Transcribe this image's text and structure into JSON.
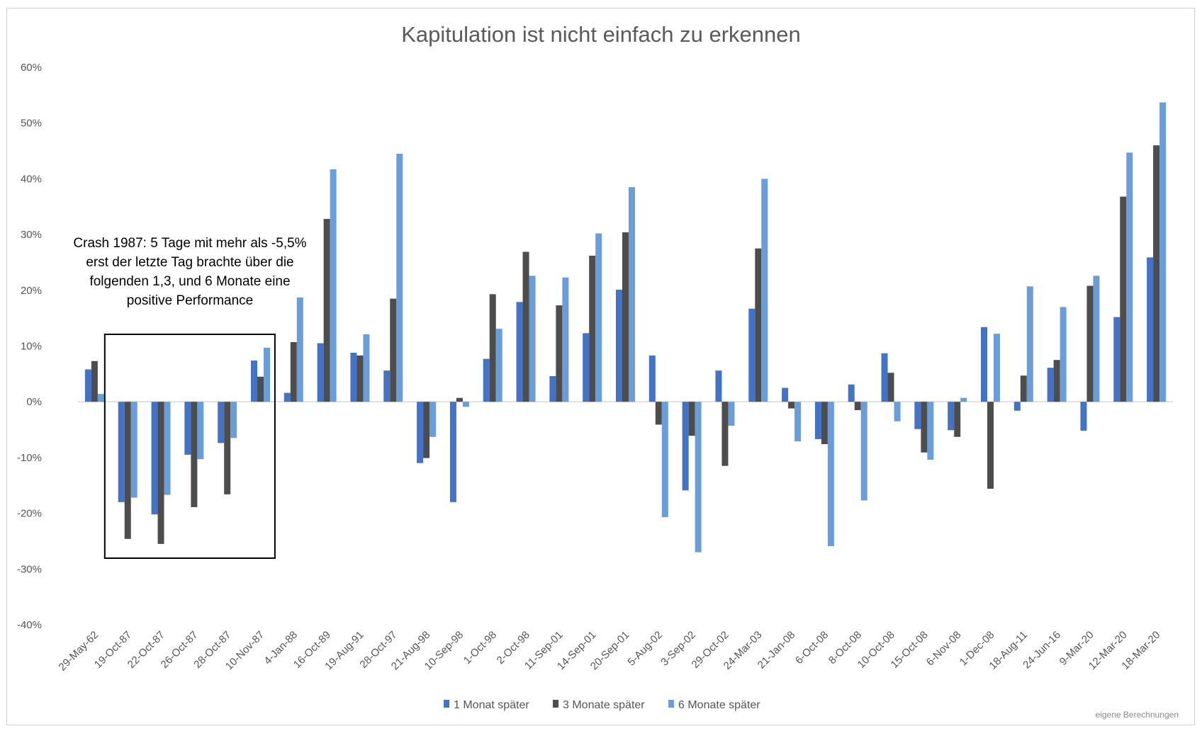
{
  "chart_data": {
    "type": "bar",
    "title": "Kapitulation ist nicht einfach zu erkennen",
    "xlabel": "",
    "ylabel": "",
    "ylim": [
      -0.4,
      0.6
    ],
    "y_ticks": [
      "60%",
      "50%",
      "40%",
      "30%",
      "20%",
      "10%",
      "0%",
      "-10%",
      "-20%",
      "-30%",
      "-40%"
    ],
    "grid": false,
    "legend_position": "bottom",
    "categories": [
      "29-May-62",
      "19-Oct-87",
      "22-Oct-87",
      "26-Oct-87",
      "28-Oct-87",
      "10-Nov-87",
      "4-Jan-88",
      "16-Oct-89",
      "19-Aug-91",
      "28-Oct-97",
      "21-Aug-98",
      "10-Sep-98",
      "1-Oct-98",
      "2-Oct-98",
      "11-Sep-01",
      "14-Sep-01",
      "20-Sep-01",
      "5-Aug-02",
      "3-Sep-02",
      "29-Oct-02",
      "24-Mar-03",
      "21-Jan-08",
      "6-Oct-08",
      "8-Oct-08",
      "10-Oct-08",
      "15-Oct-08",
      "6-Nov-08",
      "1-Dec-08",
      "18-Aug-11",
      "24-Jun-16",
      "9-Mar-20",
      "12-Mar-20",
      "18-Mar-20"
    ],
    "series": [
      {
        "name": "1 Monat später",
        "color": "#4472c4",
        "values": [
          0.058,
          -0.18,
          -0.202,
          -0.095,
          -0.074,
          0.074,
          0.016,
          0.105,
          0.088,
          0.056,
          -0.11,
          -0.18,
          0.077,
          0.179,
          0.046,
          0.123,
          0.201,
          0.083,
          -0.159,
          0.056,
          0.167,
          0.025,
          -0.067,
          0.031,
          0.087,
          -0.049,
          -0.051,
          0.134,
          -0.016,
          0.061,
          -0.052,
          0.152,
          0.259
        ]
      },
      {
        "name": "3 Monate später",
        "color": "#4d4d4d",
        "values": [
          0.073,
          -0.246,
          -0.255,
          -0.189,
          -0.166,
          0.045,
          0.107,
          0.328,
          0.083,
          0.185,
          -0.101,
          0.007,
          0.193,
          0.269,
          0.173,
          0.262,
          0.304,
          -0.041,
          -0.061,
          -0.115,
          0.275,
          -0.012,
          -0.076,
          -0.015,
          0.052,
          -0.091,
          -0.063,
          -0.156,
          0.047,
          0.075,
          0.208,
          0.368,
          0.46
        ]
      },
      {
        "name": "6 Monate später",
        "color": "#6b9ed9",
        "values": [
          0.014,
          -0.172,
          -0.167,
          -0.103,
          -0.065,
          0.097,
          0.187,
          0.417,
          0.121,
          0.445,
          -0.063,
          -0.009,
          0.131,
          0.226,
          0.223,
          0.302,
          0.385,
          -0.207,
          -0.27,
          -0.043,
          0.4,
          -0.071,
          -0.259,
          -0.177,
          -0.035,
          -0.104,
          0.007,
          0.122,
          0.207,
          0.17,
          0.226,
          0.447,
          0.537
        ]
      }
    ],
    "annotation": {
      "lines": [
        "Crash 1987: 5 Tage mit mehr als -5,5%",
        "erst der letzte Tag brachte über die",
        "folgenden 1,3, und 6 Monate eine",
        "positive Performance"
      ],
      "box_categories": [
        "19-Oct-87",
        "10-Nov-87"
      ]
    },
    "source_note": "eigene Berechnungen"
  }
}
